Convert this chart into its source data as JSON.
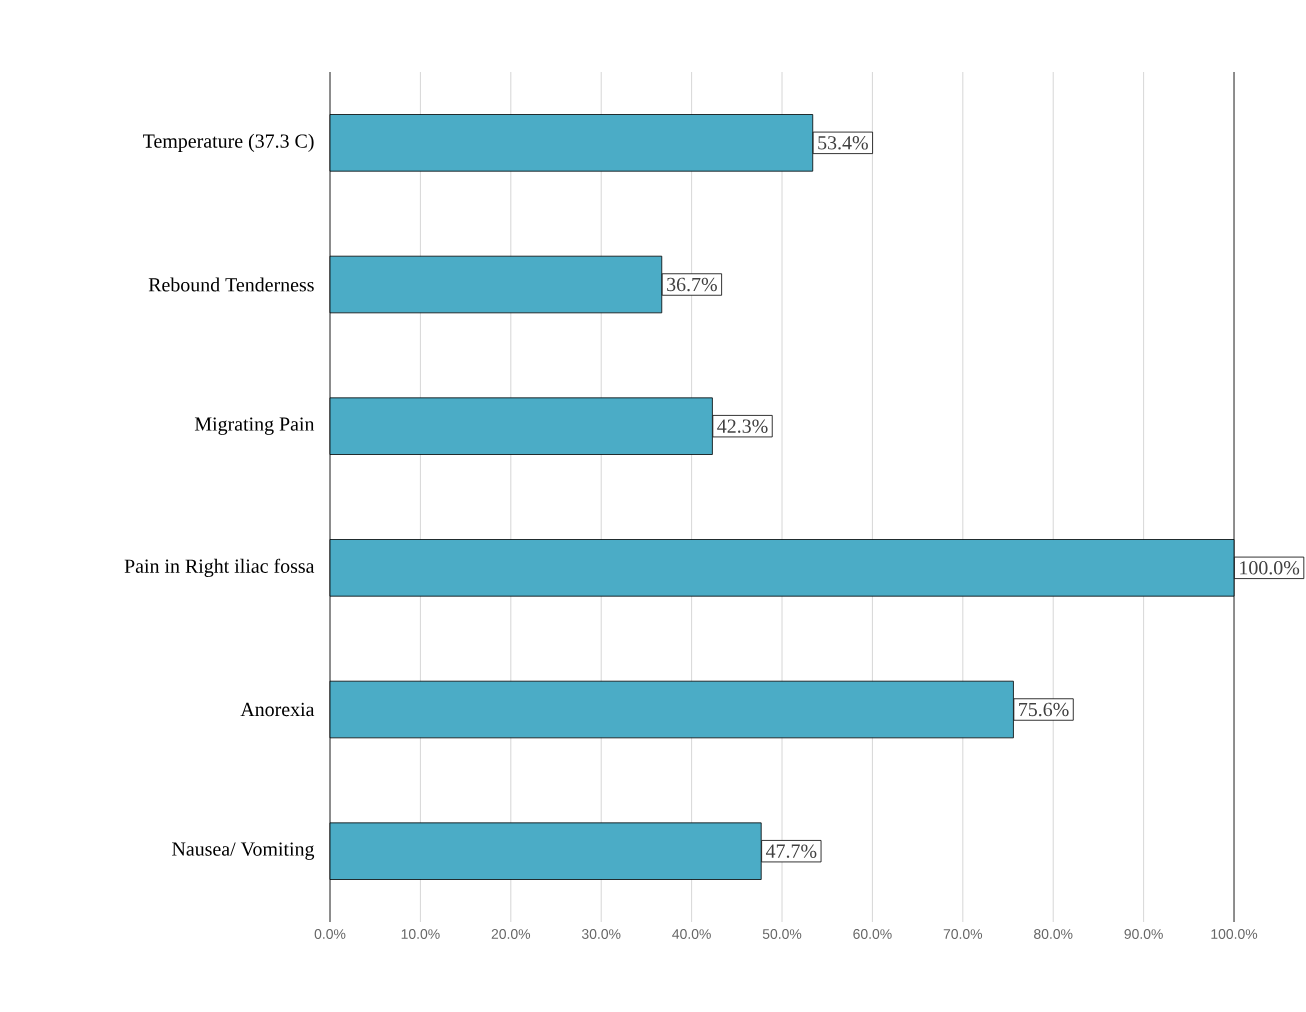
{
  "chart_data": {
    "type": "bar",
    "orientation": "horizontal",
    "categories": [
      "Temperature (37.3 C)",
      "Rebound Tenderness",
      "Migrating Pain",
      "Pain in Right iliac fossa",
      "Anorexia",
      "Nausea/ Vomiting"
    ],
    "values": [
      53.4,
      36.7,
      42.3,
      100.0,
      75.6,
      47.7
    ],
    "value_labels": [
      "53.4%",
      "36.7%",
      "42.3%",
      "100.0%",
      "75.6%",
      "47.7%"
    ],
    "color": "#4bacc6",
    "xlim": [
      0,
      100
    ],
    "xticks": [
      {
        "value": 0,
        "label": "0.0%"
      },
      {
        "value": 10,
        "label": "10.0%"
      },
      {
        "value": 20,
        "label": "20.0%"
      },
      {
        "value": 30,
        "label": "30.0%"
      },
      {
        "value": 40,
        "label": "40.0%"
      },
      {
        "value": 50,
        "label": "50.0%"
      },
      {
        "value": 60,
        "label": "60.0%"
      },
      {
        "value": 70,
        "label": "70.0%"
      },
      {
        "value": 80,
        "label": "80.0%"
      },
      {
        "value": 90,
        "label": "90.0%"
      },
      {
        "value": 100,
        "label": "100.0%"
      }
    ],
    "grid": "x"
  }
}
